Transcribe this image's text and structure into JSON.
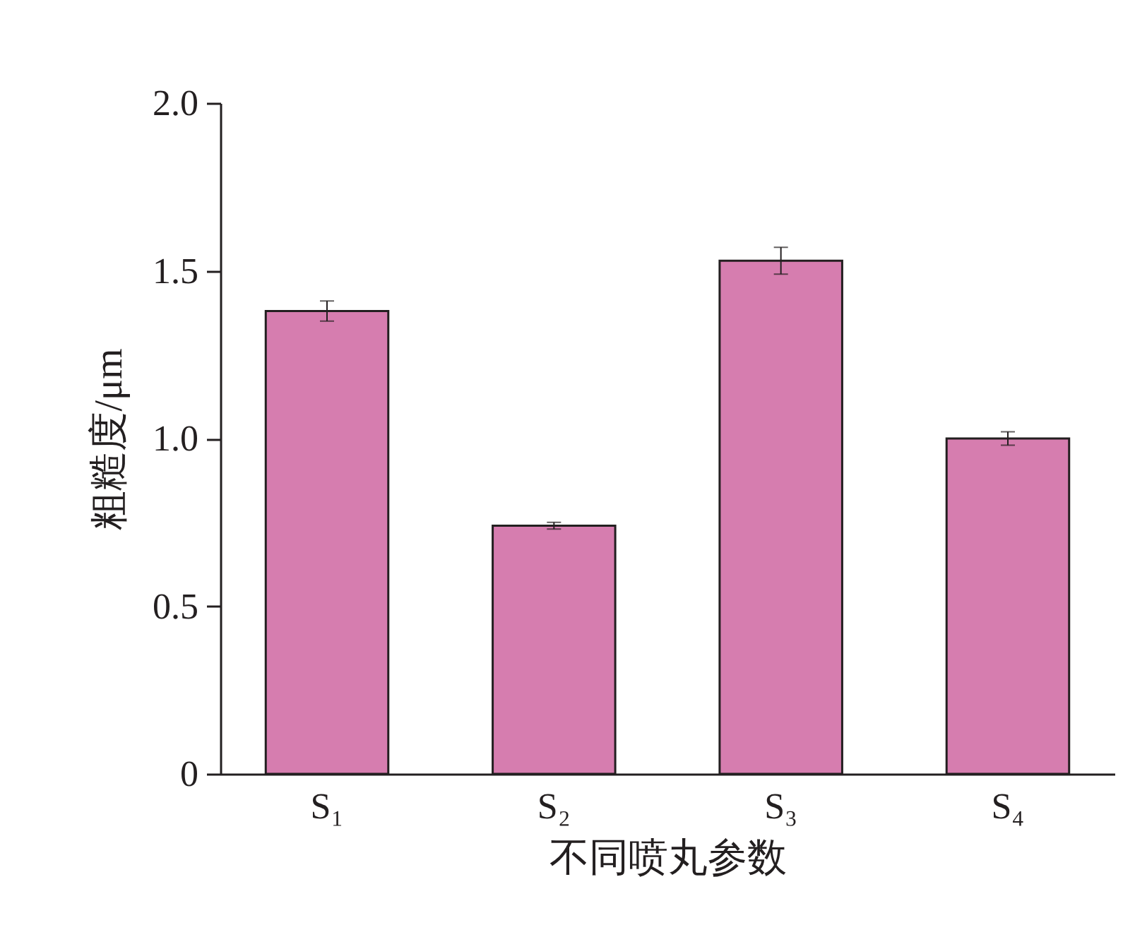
{
  "chart_data": {
    "type": "bar",
    "xlabel": "不同喷丸参数",
    "ylabel": "粗糙度/μm",
    "categories": [
      "S₁",
      "S₂",
      "S₃",
      "S₄"
    ],
    "values": [
      1.38,
      0.74,
      1.53,
      1.0
    ],
    "errors": [
      0.03,
      0.01,
      0.04,
      0.02
    ],
    "color": "#d67daf",
    "ylim": [
      0,
      2.0
    ],
    "yticks": [
      {
        "value": 0,
        "label": "0"
      },
      {
        "value": 0.5,
        "label": "0.5"
      },
      {
        "value": 1,
        "label": "1.0"
      },
      {
        "value": 1.5,
        "label": "1.5"
      },
      {
        "value": 2,
        "label": "2.0"
      }
    ],
    "grid": false
  }
}
